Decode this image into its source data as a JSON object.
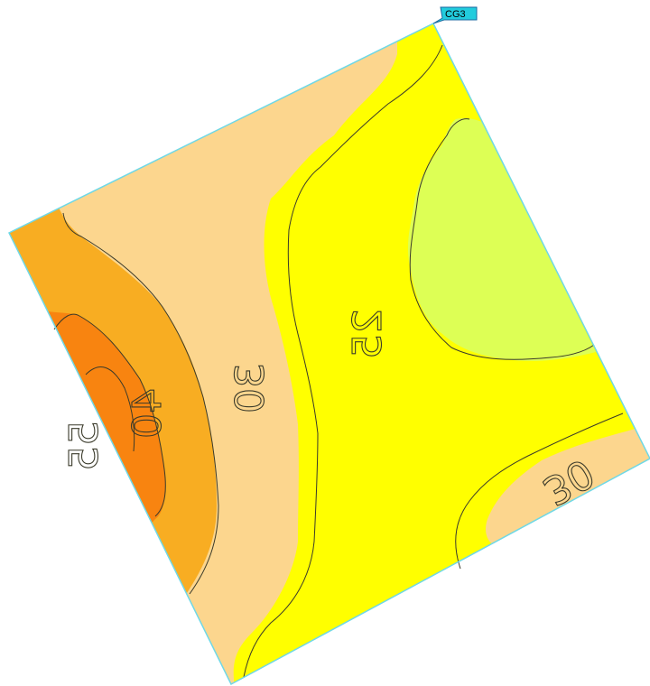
{
  "marker": {
    "label": "CG3",
    "fill": "#22ccdd"
  },
  "contour_labels": [
    "25",
    "30",
    "40",
    "55",
    "30"
  ],
  "legend_colors": {
    "band_20_25": "#ddff55",
    "band_25_30": "#ffff00",
    "band_30_40": "#fcd68e",
    "band_40_55": "#f8ad22",
    "band_above_55": "#f88410",
    "outline": "#6fd8e6"
  }
}
